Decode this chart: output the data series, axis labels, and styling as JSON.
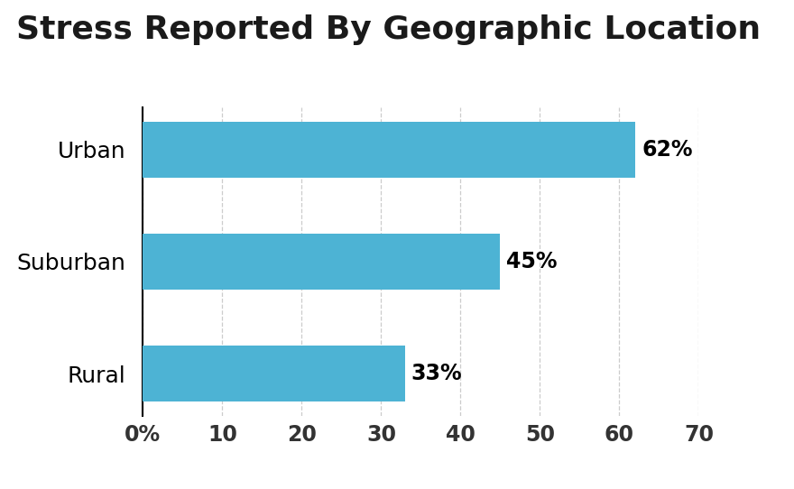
{
  "title": "Stress Reported By Geographic Location",
  "categories": [
    "Rural",
    "Suburban",
    "Urban"
  ],
  "values": [
    33,
    45,
    62
  ],
  "labels": [
    "33%",
    "45%",
    "62%"
  ],
  "bar_color": "#4db3d4",
  "xlim": [
    0,
    70
  ],
  "xticks": [
    0,
    10,
    20,
    30,
    40,
    50,
    60,
    70
  ],
  "xtick_labels": [
    "0%",
    "10",
    "20",
    "30",
    "40",
    "50",
    "60",
    "70"
  ],
  "title_fontsize": 26,
  "ylabel_fontsize": 18,
  "tick_fontsize": 17,
  "bar_label_fontsize": 17,
  "background_color": "#ffffff",
  "grid_color": "#cccccc",
  "bar_height": 0.5
}
